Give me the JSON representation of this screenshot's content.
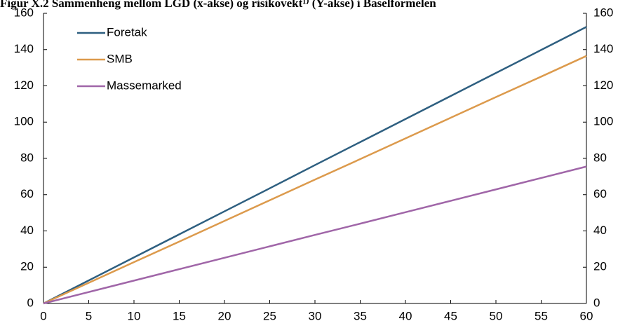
{
  "chart_data": {
    "type": "line",
    "title": "Figur X.2 Sammenheng mellom LGD (x-akse) og risikovekt¹⁾ (Y-akse) i Baselformelen",
    "x": [
      0,
      5,
      10,
      15,
      20,
      25,
      30,
      35,
      40,
      45,
      50,
      55,
      60
    ],
    "series": [
      {
        "name": "Foretak",
        "color": "#2e5f80",
        "values": [
          0,
          12.7,
          25.4,
          38.1,
          50.8,
          63.5,
          76.3,
          89,
          101.7,
          114.4,
          127.1,
          139.8,
          152.5
        ]
      },
      {
        "name": "SMB",
        "color": "#dc9a4c",
        "values": [
          0,
          11.4,
          22.8,
          34.1,
          45.5,
          56.9,
          68.3,
          79.6,
          91,
          102.4,
          113.8,
          125.1,
          136.5
        ]
      },
      {
        "name": "Massemarked",
        "color": "#a066a8",
        "values": [
          0,
          6.3,
          12.6,
          18.9,
          25.2,
          31.5,
          37.8,
          44,
          50.3,
          56.6,
          62.9,
          69.2,
          75.5
        ]
      }
    ],
    "xlim": [
      0,
      60
    ],
    "xticks": [
      0,
      5,
      10,
      15,
      20,
      25,
      30,
      35,
      40,
      45,
      50,
      55,
      60
    ],
    "ylim": [
      0,
      160
    ],
    "yticks": [
      0,
      20,
      40,
      60,
      80,
      100,
      120,
      140,
      160
    ],
    "y2lim": [
      0,
      160
    ],
    "y2ticks": [
      0,
      20,
      40,
      60,
      80,
      100,
      120,
      140,
      160
    ],
    "grid": false,
    "legend": "top-left"
  }
}
